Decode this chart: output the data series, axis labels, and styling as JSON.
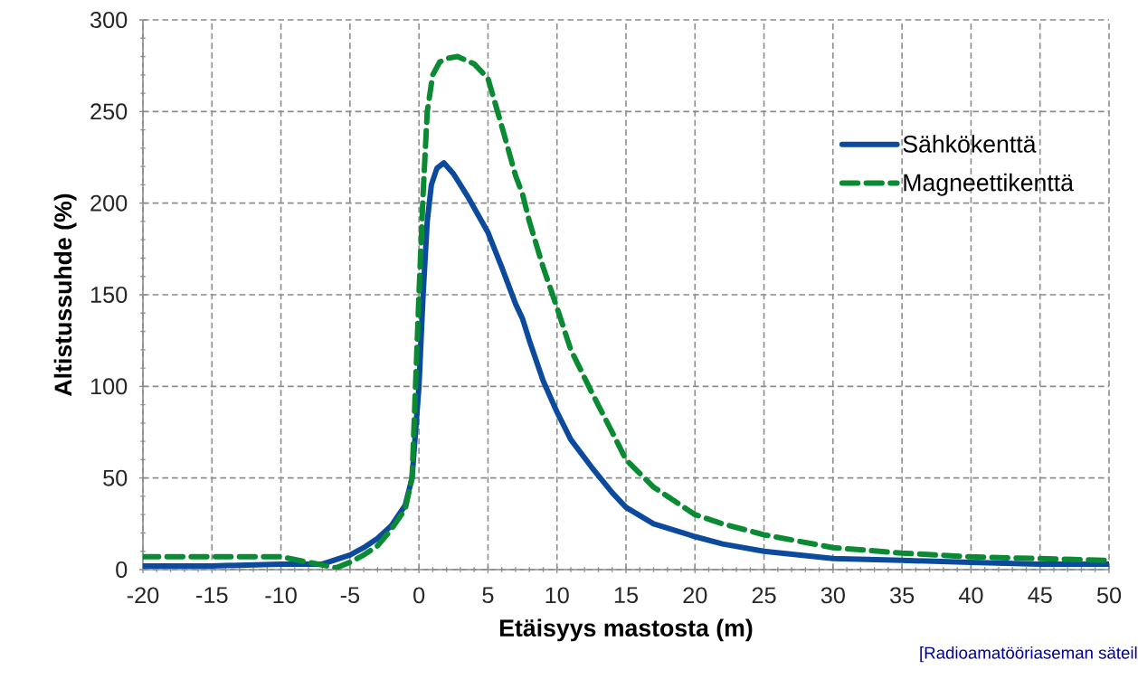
{
  "chart_data": {
    "type": "line",
    "xlabel": "Etäisyys mastosta (m)",
    "ylabel": "Altistussuhde (%)",
    "annotations": [
      "[Radioamatööriaseman säteil"
    ],
    "xlim": [
      -20,
      50
    ],
    "xticks": [
      -20,
      -15,
      -10,
      -5,
      0,
      5,
      10,
      15,
      20,
      25,
      30,
      35,
      40,
      45,
      50
    ],
    "ylim": [
      0,
      300
    ],
    "yticks": [
      0,
      50,
      100,
      150,
      200,
      250,
      300
    ],
    "grid": true,
    "legend": "top right",
    "marker": "none",
    "series": [
      {
        "name": "Sähkökenttä",
        "color": "#0b4a9c",
        "line_style": "solid",
        "x": [
          -20,
          -15,
          -10,
          -7,
          -5,
          -4,
          -3,
          -2,
          -1,
          -0.5,
          0,
          0.3,
          0.6,
          0.9,
          1.3,
          1.8,
          2.5,
          3.5,
          5,
          6,
          7,
          7.5,
          8,
          9,
          10,
          11,
          12.5,
          14,
          15,
          17,
          20,
          22,
          25,
          30,
          35,
          40,
          45,
          50
        ],
        "values": [
          2,
          2,
          3,
          3,
          8,
          12,
          17,
          24,
          35,
          50,
          100,
          150,
          190,
          210,
          219,
          222,
          216,
          204,
          184,
          165,
          145,
          137,
          125,
          103,
          86,
          71,
          56,
          42,
          34,
          25,
          18,
          14,
          10,
          6,
          5,
          4,
          3,
          3
        ]
      },
      {
        "name": "Magneettikenttä",
        "color": "#0a8a32",
        "line_style": "dashed",
        "x": [
          -20,
          -15,
          -10,
          -8,
          -6,
          -5,
          -4,
          -3,
          -2,
          -1,
          -0.5,
          0,
          0.3,
          0.6,
          1,
          1.5,
          2,
          2.8,
          4,
          5,
          6,
          7,
          7.5,
          8,
          9,
          10,
          11,
          12.5,
          14,
          15,
          17,
          20,
          22,
          25,
          30,
          35,
          40,
          45,
          50
        ],
        "values": [
          7,
          7,
          7,
          4,
          1,
          4,
          8,
          13,
          22,
          33,
          50,
          150,
          205,
          250,
          270,
          277,
          279,
          280,
          276,
          268,
          242,
          215,
          205,
          190,
          165,
          143,
          120,
          97,
          75,
          60,
          45,
          30,
          25,
          19,
          12,
          9,
          7,
          6,
          5
        ]
      }
    ]
  }
}
